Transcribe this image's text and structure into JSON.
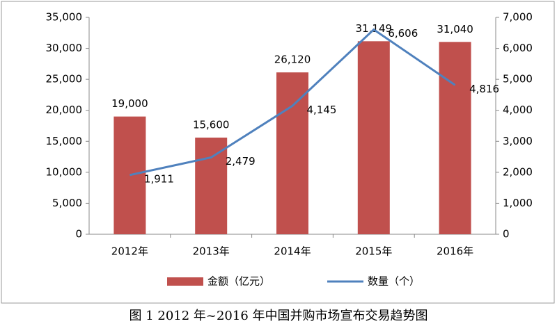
{
  "chart_data": {
    "type": "bar",
    "title": "图 1   2012 年~2016 年中国并购市场宣布交易趋势图",
    "categories": [
      "2012年",
      "2013年",
      "2014年",
      "2015年",
      "2016年"
    ],
    "series": [
      {
        "name": "金额（亿元）",
        "type": "bar",
        "color": "#c0504d",
        "values": [
          19000,
          15600,
          26120,
          31149,
          31040
        ],
        "value_labels": [
          "19,000",
          "15,600",
          "26,120",
          "31,149",
          "31,040"
        ]
      },
      {
        "name": "数量（个）",
        "type": "line",
        "axis": "y2",
        "color": "#4f81bd",
        "values": [
          1911,
          2479,
          4145,
          6606,
          4816
        ],
        "value_labels": [
          "1,911",
          "2,479",
          "4,145",
          "6,606",
          "4,816"
        ]
      }
    ],
    "ylim": [
      0,
      35000
    ],
    "yticks": [
      0,
      {
        "value": 5000,
        "label": "5,000"
      },
      {
        "value": 10000,
        "label": "10,000"
      },
      {
        "value": 15000,
        "label": "15,000"
      },
      {
        "value": 20000,
        "label": "20,000"
      },
      {
        "value": 25000,
        "label": "25,000"
      },
      {
        "value": 30000,
        "label": "30,000"
      },
      {
        "value": 35000,
        "label": "35,000"
      }
    ],
    "y2lim": [
      0,
      7000
    ],
    "y2ticks": [
      0,
      {
        "value": 1000,
        "label": "1,000"
      },
      {
        "value": 2000,
        "label": "2,000"
      },
      {
        "value": 3000,
        "label": "3,000"
      },
      {
        "value": 4000,
        "label": "4,000"
      },
      {
        "value": 5000,
        "label": "5,000"
      },
      {
        "value": 6000,
        "label": "6,000"
      },
      {
        "value": 7000,
        "label": "7,000"
      }
    ],
    "legend": "bottom"
  }
}
